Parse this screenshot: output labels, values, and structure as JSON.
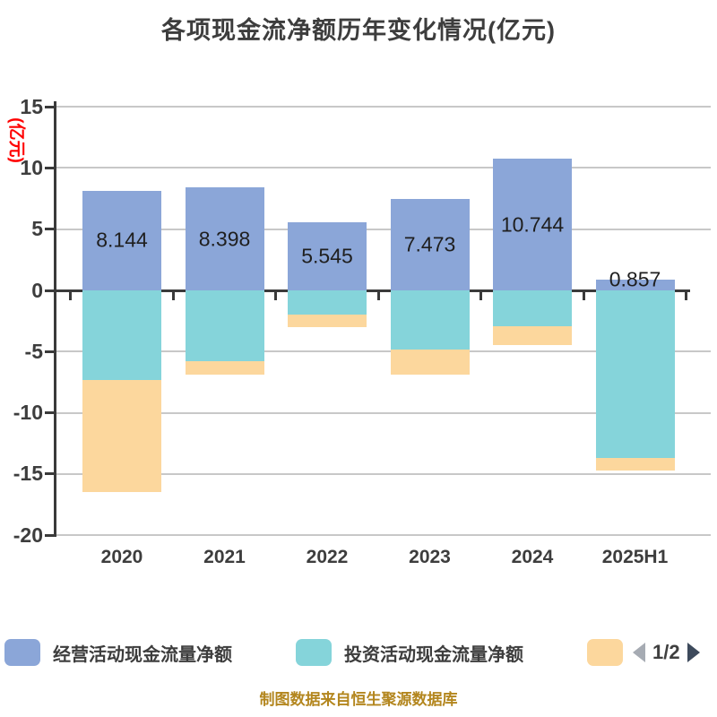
{
  "chart_data": {
    "type": "bar",
    "stacked": true,
    "title": "各项现金流净额历年变化情况(亿元)",
    "categories": [
      "2020",
      "2021",
      "2022",
      "2023",
      "2024",
      "2025H1"
    ],
    "series": [
      {
        "name": "经营活动现金流量净额",
        "color": "#8ba6d8",
        "values": [
          8.144,
          8.398,
          5.545,
          7.473,
          10.744,
          0.857
        ],
        "data_labels": [
          "8.144",
          "8.398",
          "5.545",
          "7.473",
          "10.744",
          "0.857"
        ]
      },
      {
        "name": "投资活动现金流量净额",
        "color": "#85d4da",
        "values_estimated": [
          -7.3,
          -5.8,
          -2.0,
          -4.8,
          -2.9,
          -13.7
        ]
      },
      {
        "name": "",
        "legend_label_visible": false,
        "color": "#fcd79d",
        "values_estimated": [
          -9.2,
          -1.1,
          -1.0,
          -2.1,
          -1.6,
          -1.0
        ]
      }
    ],
    "ylabel": "(亿元)",
    "ylim": [
      -20,
      15
    ],
    "yticks": [
      15,
      10,
      5,
      0,
      -5,
      -10,
      -15,
      -20
    ],
    "grid": true,
    "legend_position": "bottom",
    "legend_pagination": "1/2"
  },
  "legend": {
    "items": [
      {
        "label": "经营活动现金流量净额",
        "color": "#8ba6d8"
      },
      {
        "label": "投资活动现金流量净额",
        "color": "#85d4da"
      },
      {
        "label": "",
        "color": "#fcd79d"
      }
    ],
    "pagination": {
      "current": "1/2",
      "prev_icon_color": "#a6abb3",
      "next_icon_color": "#3d4a5c"
    }
  },
  "footer": {
    "source_note": "制图数据来自恒生聚源数据库"
  },
  "colors": {
    "operating_bar": "#8ba6d8",
    "investing_bar": "#85d4da",
    "third_bar": "#fcd79d",
    "gridline": "#c8c8c8",
    "axis": "#3a3a3a",
    "tick_text": "#3d3d3d",
    "value_label_text": "#1f1f1f",
    "unit_label_text": "#ff0000",
    "footer_text": "#b3861e"
  }
}
